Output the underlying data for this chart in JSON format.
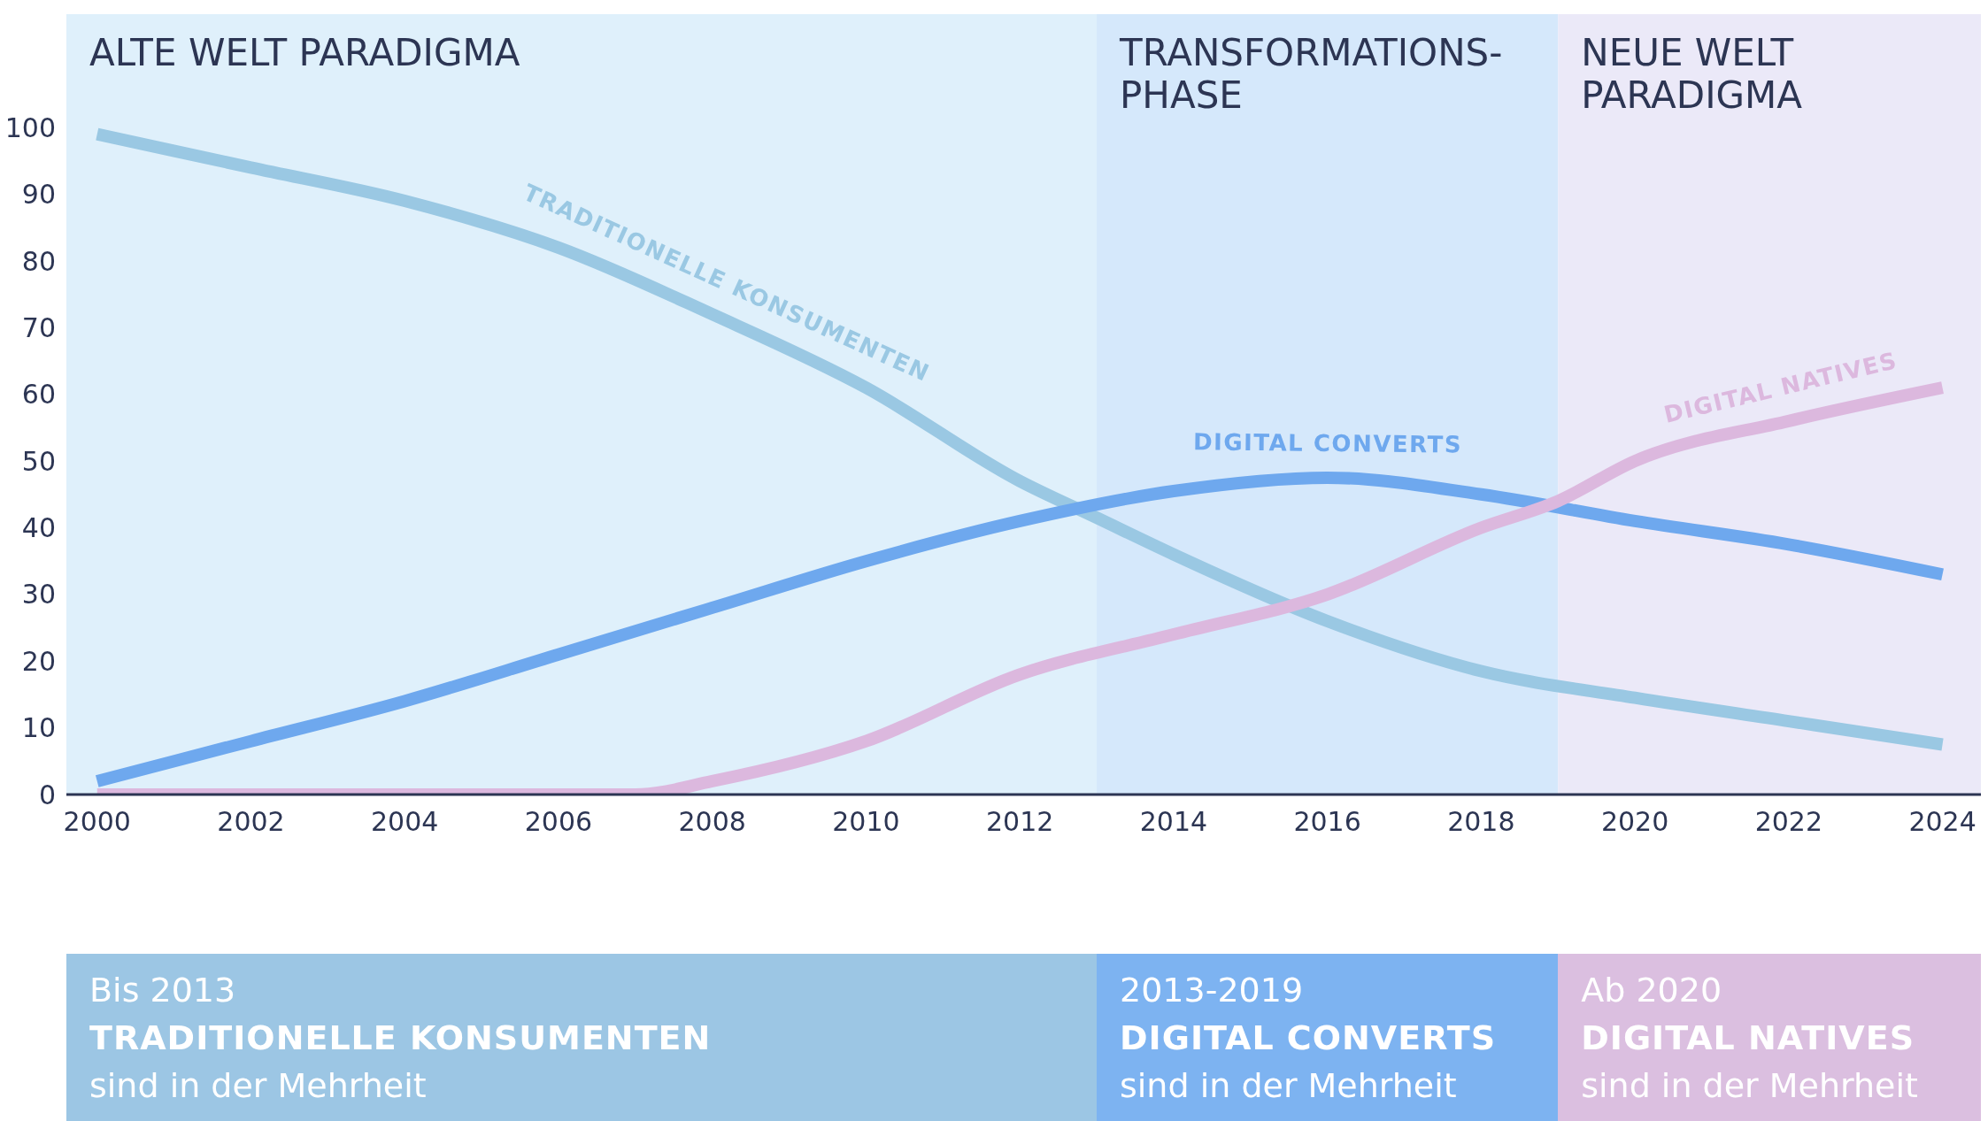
{
  "chart_data": {
    "type": "line",
    "xlim": [
      1999.6,
      2024.5
    ],
    "xticks": [
      2000,
      2002,
      2004,
      2006,
      2008,
      2010,
      2012,
      2014,
      2016,
      2018,
      2020,
      2022,
      2024
    ],
    "ylim": [
      0,
      117
    ],
    "yticks": [
      0,
      10,
      20,
      30,
      40,
      50,
      60,
      70,
      80,
      90,
      100
    ],
    "grid": false,
    "legend": false,
    "series": [
      {
        "name": "TRADITIONELLE KONSUMENTEN",
        "color": "#9ac8e3",
        "x": [
          2000,
          2002,
          2004,
          2006,
          2008,
          2010,
          2012,
          2013,
          2014,
          2016,
          2018,
          2020,
          2022,
          2024
        ],
        "values": [
          99,
          94,
          89,
          82,
          72,
          61,
          47,
          41.5,
          36,
          26,
          18.5,
          14.5,
          11,
          7.5
        ]
      },
      {
        "name": "DIGITAL CONVERTS",
        "color": "#6ea8ee",
        "x": [
          2000,
          2002,
          2004,
          2006,
          2008,
          2010,
          2012,
          2014,
          2016,
          2018,
          2020,
          2022,
          2024
        ],
        "values": [
          2,
          8,
          14,
          21,
          28,
          35,
          41,
          45.5,
          47.5,
          45,
          41,
          37.5,
          33
        ]
      },
      {
        "name": "DIGITAL NATIVES",
        "color": "#dcb8de",
        "x": [
          2000,
          2006,
          2007,
          2008,
          2010,
          2012,
          2014,
          2016,
          2018,
          2019,
          2020,
          2022,
          2024
        ],
        "values": [
          0,
          0,
          0,
          2,
          8,
          18,
          24,
          30,
          40,
          44,
          50,
          56,
          61
        ]
      }
    ],
    "bands": [
      {
        "axis": "x",
        "from": 1999.6,
        "to": 2013,
        "label": "ALTE WELT PARADIGMA",
        "color": "#dff0fb"
      },
      {
        "axis": "x",
        "from": 2013,
        "to": 2019,
        "label": "TRANSFORMATIONS-PHASE",
        "color": "#d5e8fb"
      },
      {
        "axis": "x",
        "from": 2019,
        "to": 2024.5,
        "label": "NEUE WELT PARADIGMA",
        "color": "#ebe9f8"
      }
    ],
    "annotations": [
      "Bis 2013\nTRADITIONELLE KONSUMENTEN\nsind in der Mehrheit",
      "2013-2019\nDIGITAL CONVERTS\nsind in der Mehrheit",
      "Ab 2020\nDIGITAL NATIVES\nsind in der Mehrheit"
    ]
  }
}
